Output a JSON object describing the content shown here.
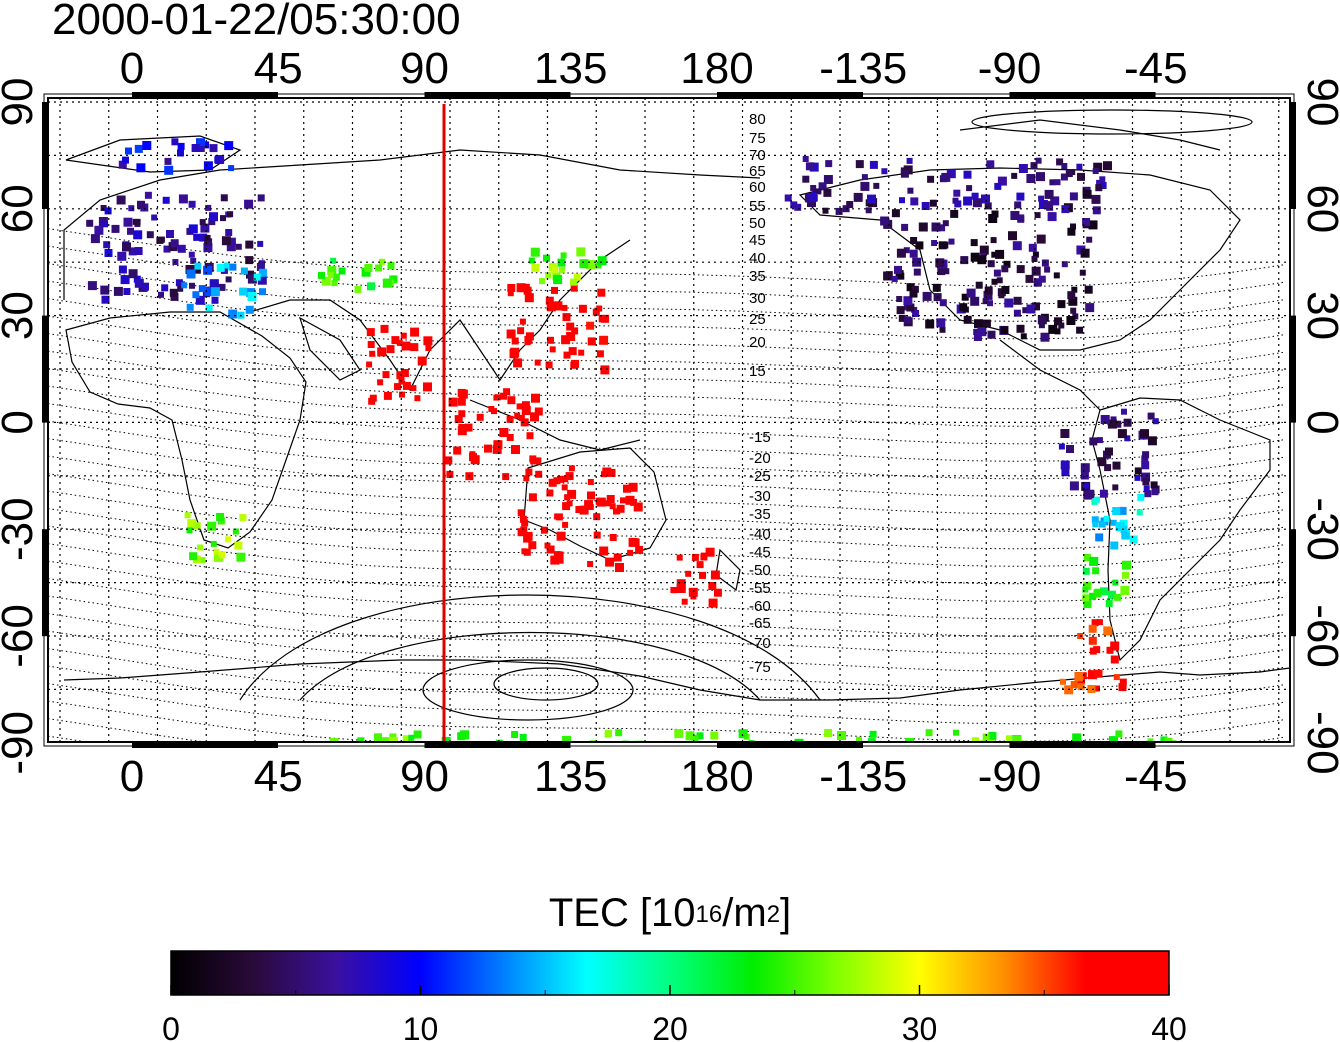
{
  "header": {
    "timestamp": "2000-01-22/05:30:00"
  },
  "map": {
    "lon_ticks": [
      0,
      45,
      90,
      135,
      180,
      -135,
      -90,
      -45
    ],
    "lat_ticks": [
      90,
      60,
      30,
      0,
      -30,
      -60,
      -90
    ],
    "terminator_longitude": 96,
    "terminator_color": "#e00000",
    "north_contour_labels": [
      "80",
      "75",
      "70",
      "65",
      "60",
      "55",
      "50",
      "45",
      "40",
      "35",
      "30",
      "25",
      "20",
      "15"
    ],
    "south_contour_labels": [
      "-15",
      "-20",
      "-25",
      "-30",
      "-35",
      "-40",
      "-45",
      "-50",
      "-55",
      "-60",
      "-65",
      "-70",
      "-75"
    ],
    "tec_regions": [
      {
        "name": "europe",
        "lon": [
          -15,
          40
        ],
        "lat": [
          35,
          65
        ],
        "tec": 6
      },
      {
        "name": "scandinavia-cyan",
        "lon": [
          15,
          40
        ],
        "lat": [
          30,
          45
        ],
        "tec": 14
      },
      {
        "name": "greenland-blue",
        "lon": [
          -10,
          30
        ],
        "lat": [
          72,
          80
        ],
        "tec": 9
      },
      {
        "name": "central-asia",
        "lon": [
          55,
          80
        ],
        "lat": [
          38,
          47
        ],
        "tec": 24
      },
      {
        "name": "india",
        "lon": [
          72,
          92
        ],
        "lat": [
          5,
          28
        ],
        "tec": 40
      },
      {
        "name": "japan-china",
        "lon": [
          115,
          145
        ],
        "lat": [
          15,
          40
        ],
        "tec": 39
      },
      {
        "name": "east-asia-green",
        "lon": [
          120,
          145
        ],
        "lat": [
          40,
          50
        ],
        "tec": 26
      },
      {
        "name": "se-asia",
        "lon": [
          95,
          125
        ],
        "lat": [
          -15,
          10
        ],
        "tec": 40
      },
      {
        "name": "australia",
        "lon": [
          115,
          155
        ],
        "lat": [
          -40,
          -12
        ],
        "tec": 40
      },
      {
        "name": "new-zealand",
        "lon": [
          165,
          180
        ],
        "lat": [
          -50,
          -35
        ],
        "tec": 40
      },
      {
        "name": "north-america",
        "lon": [
          -130,
          -65
        ],
        "lat": [
          25,
          60
        ],
        "tec": 4
      },
      {
        "name": "canada-purple",
        "lon": [
          -160,
          -60
        ],
        "lat": [
          60,
          75
        ],
        "tec": 5
      },
      {
        "name": "south-america-north",
        "lon": [
          -75,
          -45
        ],
        "lat": [
          -20,
          5
        ],
        "tec": 5
      },
      {
        "name": "south-america-cyan",
        "lon": [
          -65,
          -50
        ],
        "lat": [
          -35,
          -20
        ],
        "tec": 16
      },
      {
        "name": "south-america-green",
        "lon": [
          -70,
          -55
        ],
        "lat": [
          -50,
          -35
        ],
        "tec": 24
      },
      {
        "name": "patagonia",
        "lon": [
          -75,
          -55
        ],
        "lat": [
          -75,
          -55
        ],
        "tec": 37
      },
      {
        "name": "south-africa",
        "lon": [
          15,
          35
        ],
        "lat": [
          -38,
          -25
        ],
        "tec": 26
      },
      {
        "name": "antarctic-green",
        "lon": [
          -30,
          60
        ],
        "lat": [
          -90,
          -86
        ],
        "tec": 25
      }
    ]
  },
  "colorbar": {
    "title_prefix": "TEC  [10",
    "title_exp1": "16",
    "title_mid": "/m",
    "title_exp2": "2",
    "title_suffix": "]",
    "min": 0,
    "max": 40,
    "tick_values": [
      "0",
      "10",
      "20",
      "30",
      "40"
    ],
    "gradient_stops": [
      "#000000",
      "#2a0a3a",
      "#3a10a0",
      "#0000ff",
      "#0080ff",
      "#00ffff",
      "#00ff80",
      "#00ee00",
      "#80ff00",
      "#ffff00",
      "#ff9000",
      "#ff0000",
      "#ff0000"
    ]
  }
}
